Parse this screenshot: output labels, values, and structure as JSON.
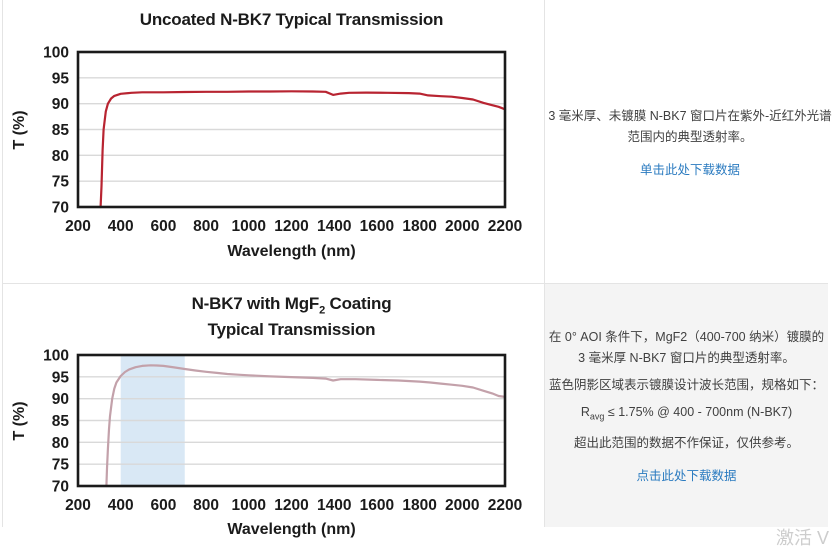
{
  "colors": {
    "link": "#2b7bc0",
    "uncoated_curve": "#b82431",
    "coated_curve": "#c3a1aa",
    "band_fill": "#d9e8f5",
    "gridline": "#d9d9d9",
    "coated_panel_bg": "#f4f4f4"
  },
  "panels": {
    "uncoated": {
      "description_lines": [
        "3 毫米厚、未镀膜 N-BK7 窗口片在紫外-近红外光谱",
        "范围内的典型透射率。"
      ],
      "link": "单击此处下载数据"
    },
    "coated": {
      "description_lines": [
        "在 0° AOI 条件下，MgF2（400-700 纳米）镀膜的",
        "3 毫米厚 N-BK7 窗口片的典型透射率。"
      ],
      "shading_note": "蓝色阴影区域表示镀膜设计波长范围，规格如下：",
      "spec": {
        "prefix": "R",
        "sub": "avg",
        "rest": " ≤ 1.75% @ 400 - 700nm (N-BK7)"
      },
      "disclaimer": "超出此范围的数据不作保证，仅供参考。",
      "link": "点击此处下载数据"
    }
  },
  "watermark": "激活 V",
  "chart_data": [
    {
      "type": "line",
      "title": "Uncoated N-BK7 Typical Transmission",
      "xlabel": "Wavelength (nm)",
      "ylabel": "T (%)",
      "xlim": [
        200,
        2200
      ],
      "ylim": [
        70,
        100
      ],
      "xticks": [
        200,
        400,
        600,
        800,
        1000,
        1200,
        1400,
        1600,
        1800,
        2000,
        2200
      ],
      "yticks": [
        70,
        75,
        80,
        85,
        90,
        95,
        100
      ],
      "grid": "horizontal",
      "legend": "none",
      "line_color": "#b82431",
      "grid_color": "#d9d9d9",
      "series_name": "Uncoated N-BK7 transmission",
      "points": [
        [
          306,
          70
        ],
        [
          310,
          74
        ],
        [
          315,
          81
        ],
        [
          320,
          85
        ],
        [
          330,
          88.5
        ],
        [
          340,
          90
        ],
        [
          355,
          91
        ],
        [
          370,
          91.5
        ],
        [
          400,
          91.9
        ],
        [
          450,
          92.1
        ],
        [
          500,
          92.2
        ],
        [
          600,
          92.2
        ],
        [
          700,
          92.25
        ],
        [
          800,
          92.3
        ],
        [
          900,
          92.3
        ],
        [
          1000,
          92.35
        ],
        [
          1100,
          92.35
        ],
        [
          1200,
          92.4
        ],
        [
          1300,
          92.35
        ],
        [
          1360,
          92.3
        ],
        [
          1395,
          91.7
        ],
        [
          1430,
          91.95
        ],
        [
          1470,
          92.1
        ],
        [
          1550,
          92.15
        ],
        [
          1650,
          92.1
        ],
        [
          1750,
          92.05
        ],
        [
          1800,
          91.95
        ],
        [
          1840,
          91.6
        ],
        [
          1900,
          91.45
        ],
        [
          1950,
          91.35
        ],
        [
          2000,
          91.1
        ],
        [
          2050,
          90.8
        ],
        [
          2100,
          90.15
        ],
        [
          2140,
          89.7
        ],
        [
          2170,
          89.4
        ],
        [
          2200,
          88.9
        ]
      ]
    },
    {
      "type": "line",
      "title_prefix": "N-BK7 with MgF",
      "title_sub": "2",
      "title_suffix": " Coating",
      "title_line2": "Typical Transmission",
      "xlabel": "Wavelength (nm)",
      "ylabel": "T (%)",
      "xlim": [
        200,
        2200
      ],
      "ylim": [
        70,
        100
      ],
      "xticks": [
        200,
        400,
        600,
        800,
        1000,
        1200,
        1400,
        1600,
        1800,
        2000,
        2200
      ],
      "yticks": [
        70,
        75,
        80,
        85,
        90,
        95,
        100
      ],
      "grid": "horizontal",
      "legend": "none",
      "band": {
        "from": 400,
        "to": 700,
        "color": "#d9e8f5",
        "meaning": "coating design wavelength range"
      },
      "line_color": "#c3a1aa",
      "grid_color": "#d9d9d9",
      "series_name": "MgF2 coated N-BK7 transmission",
      "points": [
        [
          333,
          70
        ],
        [
          336,
          74
        ],
        [
          340,
          78.5
        ],
        [
          345,
          83
        ],
        [
          350,
          86
        ],
        [
          360,
          90
        ],
        [
          370,
          92.3
        ],
        [
          380,
          93.7
        ],
        [
          400,
          95.2
        ],
        [
          420,
          96.1
        ],
        [
          440,
          96.7
        ],
        [
          470,
          97.2
        ],
        [
          500,
          97.5
        ],
        [
          540,
          97.65
        ],
        [
          570,
          97.6
        ],
        [
          600,
          97.5
        ],
        [
          650,
          97.15
        ],
        [
          700,
          96.8
        ],
        [
          750,
          96.45
        ],
        [
          800,
          96.15
        ],
        [
          850,
          95.9
        ],
        [
          900,
          95.65
        ],
        [
          950,
          95.5
        ],
        [
          1000,
          95.35
        ],
        [
          1100,
          95.1
        ],
        [
          1200,
          94.95
        ],
        [
          1300,
          94.75
        ],
        [
          1360,
          94.6
        ],
        [
          1395,
          94.15
        ],
        [
          1430,
          94.45
        ],
        [
          1500,
          94.45
        ],
        [
          1600,
          94.3
        ],
        [
          1700,
          94.15
        ],
        [
          1800,
          93.9
        ],
        [
          1850,
          93.7
        ],
        [
          1900,
          93.45
        ],
        [
          1950,
          93.2
        ],
        [
          2000,
          92.95
        ],
        [
          2050,
          92.55
        ],
        [
          2100,
          91.8
        ],
        [
          2140,
          91.2
        ],
        [
          2170,
          90.6
        ],
        [
          2200,
          90.4
        ]
      ]
    }
  ]
}
